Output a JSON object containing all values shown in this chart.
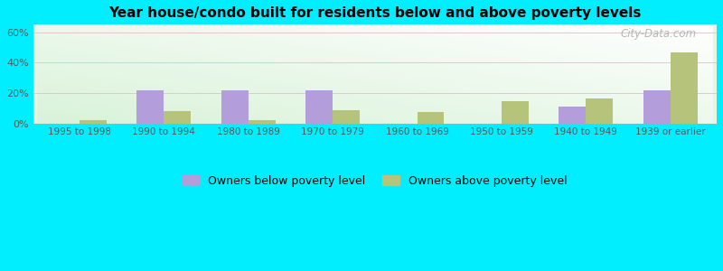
{
  "title": "Year house/condo built for residents below and above poverty levels",
  "categories": [
    "1995 to 1998",
    "1990 to 1994",
    "1980 to 1989",
    "1970 to 1979",
    "1960 to 1969",
    "1950 to 1959",
    "1940 to 1949",
    "1939 or earlier"
  ],
  "below_poverty": [
    0.0,
    22.0,
    22.0,
    22.0,
    0.0,
    0.0,
    11.0,
    22.0
  ],
  "above_poverty": [
    2.5,
    8.0,
    2.5,
    8.5,
    7.5,
    15.0,
    16.5,
    46.5
  ],
  "below_color": "#b39ddb",
  "above_color": "#b5c47a",
  "ylim": [
    0,
    65
  ],
  "yticks": [
    0,
    20,
    40,
    60
  ],
  "ytick_labels": [
    "0%",
    "20%",
    "40%",
    "60%"
  ],
  "outer_bg": "#00eeff",
  "legend_below": "Owners below poverty level",
  "legend_above": "Owners above poverty level",
  "watermark": "City-Data.com",
  "bar_width": 0.32
}
